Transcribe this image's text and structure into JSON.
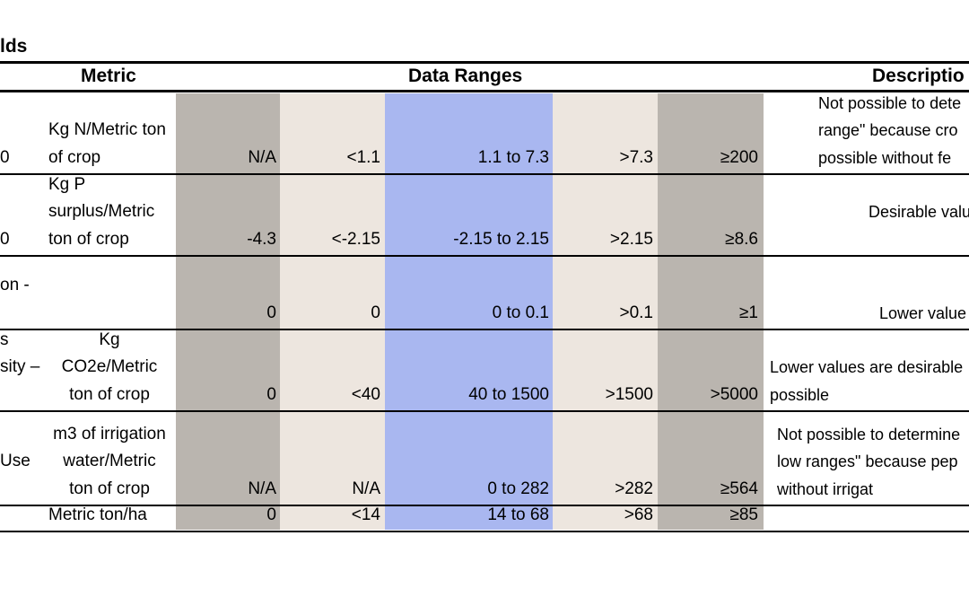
{
  "title": "lds",
  "headers": {
    "metric": "Metric",
    "ranges": "Data Ranges",
    "description": "Descriptio"
  },
  "colors": {
    "dark_band": "#bab5af",
    "light_band": "#ede6df",
    "blue_band": "#a9b7f0"
  },
  "rows": [
    {
      "name": [
        "",
        "",
        "0"
      ],
      "metric": [
        "",
        "Kg N/Metric ton",
        "of crop"
      ],
      "v1": "N/A",
      "v2": "<1.1",
      "v3": "1.1 to 7.3",
      "v4": ">7.3",
      "v5": "≥200",
      "desc": [
        "Not possible to dete",
        "range\" because cro",
        "possible without fe"
      ]
    },
    {
      "name": [
        "",
        "",
        "0"
      ],
      "metric": [
        "Kg P",
        "surplus/Metric",
        "ton of crop"
      ],
      "v1": "-4.3",
      "v2": "<-2.15",
      "v3": "-2.15 to 2.15",
      "v4": ">2.15",
      "v5": "≥8.6",
      "desc": [
        "",
        "Desirable value",
        ""
      ]
    },
    {
      "name": [
        "",
        "on -",
        ""
      ],
      "metric": [
        "",
        "",
        ""
      ],
      "v1": "0",
      "v2": "0",
      "v3": "0 to 0.1",
      "v4": ">0.1",
      "v5": "≥1",
      "desc": [
        "",
        "",
        "Lower value"
      ]
    },
    {
      "name": [
        "s",
        "sity –",
        ""
      ],
      "metric": [
        "Kg",
        "CO2e/Metric",
        "ton of crop"
      ],
      "v1": "0",
      "v2": "<40",
      "v3": "40 to 1500",
      "v4": ">1500",
      "v5": ">5000",
      "desc": [
        "",
        "Lower values are desirable",
        "possible"
      ]
    },
    {
      "name": [
        "",
        "Use",
        ""
      ],
      "metric": [
        "m3 of irrigation",
        "water/Metric",
        "ton of crop"
      ],
      "v1": "N/A",
      "v2": "N/A",
      "v3": "0 to 282",
      "v4": ">282",
      "v5": "≥564",
      "desc": [
        "Not possible to determine",
        "low ranges\" because pep",
        "without irrigat"
      ]
    },
    {
      "name": [
        ""
      ],
      "metric": [
        "Metric ton/ha"
      ],
      "v1": "0",
      "v2": "<14",
      "v3": "14  to 68",
      "v4": ">68",
      "v5": "≥85",
      "desc": [
        ""
      ]
    }
  ]
}
